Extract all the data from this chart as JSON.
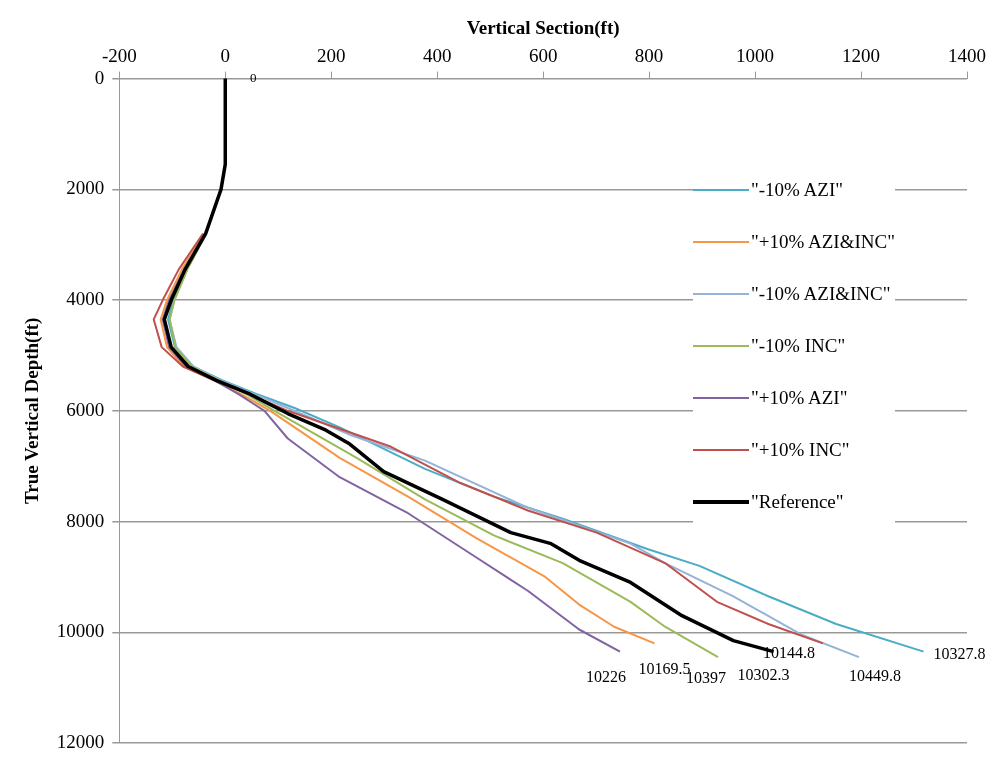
{
  "chart_data": {
    "type": "line",
    "xlabel": "Vertical Section(ft)",
    "ylabel": "True Vertical Depth(ft)",
    "xlim": [
      -200,
      1400
    ],
    "xticks": [
      -200,
      0,
      200,
      400,
      600,
      800,
      1000,
      1200,
      1400
    ],
    "ylim": [
      12000,
      0
    ],
    "yticks": [
      0,
      2000,
      4000,
      6000,
      8000,
      10000,
      12000
    ],
    "grid": "y",
    "legend": "right",
    "marker": "none",
    "line_style": "solid",
    "series": [
      {
        "name": "\"-10% AZI\"",
        "color": "#4bacc6",
        "x": [
          -72,
          -98,
          -108,
          -95,
          -62,
          -5,
          60,
          131,
          216,
          377,
          507,
          637,
          798,
          895,
          1025,
          1153,
          1318
        ],
        "values": [
          3450,
          4000,
          4350,
          4850,
          5200,
          5450,
          5700,
          5950,
          6300,
          7050,
          7550,
          7950,
          8500,
          8800,
          9350,
          9850,
          10350
        ]
      },
      {
        "name": "\"+10% AZI&INC\"",
        "color": "#f79646",
        "x": [
          -40,
          -82,
          -110,
          -122,
          -110,
          -78,
          -22,
          30,
          85,
          216,
          345,
          474,
          604,
          668,
          734,
          810
        ],
        "values": [
          2800,
          3450,
          4000,
          4350,
          4850,
          5200,
          5450,
          5700,
          6000,
          6850,
          7550,
          8300,
          9000,
          9500,
          9900,
          10200
        ]
      },
      {
        "name": "\"-10% AZI&INC\"",
        "color": "#95b3d7",
        "x": [
          -36,
          -72,
          -96,
          -105,
          -92,
          -60,
          -8,
          55,
          118,
          240,
          377,
          571,
          765,
          830,
          959,
          1089,
          1196
        ],
        "values": [
          2800,
          3450,
          4000,
          4350,
          4850,
          5200,
          5450,
          5700,
          5950,
          6450,
          6900,
          7750,
          8400,
          8750,
          9350,
          10050,
          10450
        ]
      },
      {
        "name": "\"-10% INC\"",
        "color": "#9bbb59",
        "x": [
          -36,
          -72,
          -96,
          -105,
          -94,
          -64,
          -12,
          40,
          93,
          248,
          377,
          507,
          637,
          765,
          830,
          930
        ],
        "values": [
          2800,
          3450,
          4000,
          4350,
          4850,
          5200,
          5450,
          5700,
          6000,
          6850,
          7600,
          8250,
          8750,
          9450,
          9900,
          10450
        ]
      },
      {
        "name": "\"+10% AZI\"",
        "color": "#8064a2",
        "x": [
          -38,
          -78,
          -106,
          -118,
          -106,
          -74,
          -20,
          25,
          74,
          118,
          216,
          345,
          474,
          571,
          668,
          745
        ],
        "values": [
          2800,
          3450,
          4000,
          4350,
          4850,
          5200,
          5450,
          5700,
          6000,
          6500,
          7200,
          7850,
          8650,
          9250,
          9950,
          10350
        ]
      },
      {
        "name": "\"+10% INC\"",
        "color": "#c0504d",
        "x": [
          -42,
          -88,
          -118,
          -135,
          -120,
          -80,
          -20,
          45,
          118,
          313,
          443,
          571,
          701,
          830,
          928,
          1025,
          1128
        ],
        "values": [
          2800,
          3450,
          4000,
          4350,
          4850,
          5200,
          5450,
          5700,
          6000,
          6650,
          7300,
          7800,
          8200,
          8750,
          9450,
          9850,
          10200
        ]
      },
      {
        "name": "\"Reference\"",
        "color": "#000000",
        "x": [
          0,
          0,
          -8,
          -37,
          -76,
          -102,
          -115,
          -102,
          -70,
          -17,
          47,
          118,
          190,
          235,
          299,
          410,
          539,
          615,
          668,
          765,
          862,
          959,
          1035
        ],
        "values": [
          0,
          1550,
          2000,
          2800,
          3450,
          4000,
          4350,
          4850,
          5200,
          5450,
          5700,
          6050,
          6350,
          6600,
          7100,
          7600,
          8200,
          8400,
          8700,
          9100,
          9700,
          10150,
          10350
        ]
      }
    ],
    "annotations": [
      {
        "text": "0",
        "x": 0,
        "y": 0
      },
      {
        "text": "10226",
        "x": 745,
        "y": 10350
      },
      {
        "text": "10169.5",
        "x": 810,
        "y": 10200
      },
      {
        "text": "10397",
        "x": 930,
        "y": 10450
      },
      {
        "text": "10302.3",
        "x": 1035,
        "y": 10350
      },
      {
        "text": "10449.8",
        "x": 1196,
        "y": 10450
      },
      {
        "text": "10144.8",
        "x": 1128,
        "y": 10200
      },
      {
        "text": "10327.8",
        "x": 1318,
        "y": 10350
      }
    ]
  }
}
